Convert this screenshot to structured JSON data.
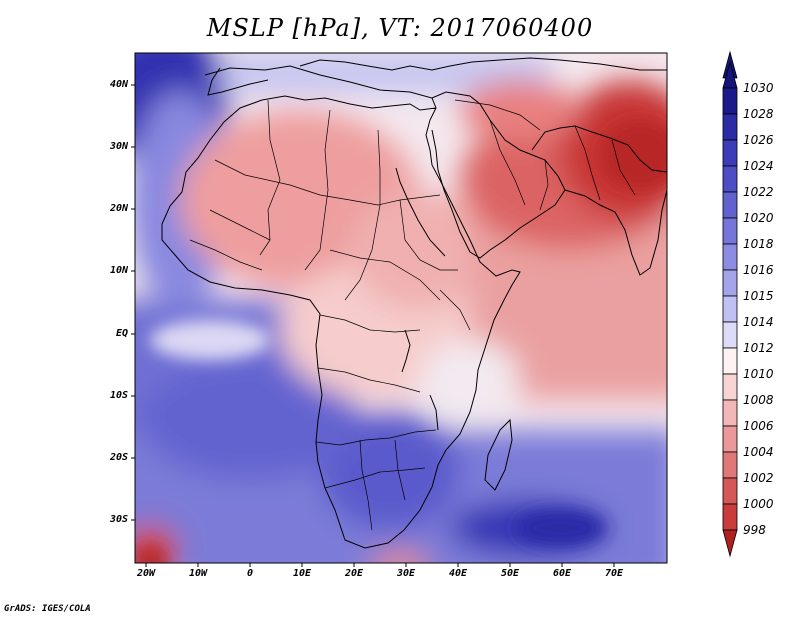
{
  "title": "MSLP [hPa], VT: 2017060400",
  "credit": "GrADS: IGES/COLA",
  "map": {
    "lat_labels": [
      "40N",
      "30N",
      "20N",
      "10N",
      "EQ",
      "10S",
      "20S",
      "30S"
    ],
    "lon_labels": [
      "20W",
      "10W",
      "0",
      "10E",
      "20E",
      "30E",
      "40E",
      "50E",
      "60E",
      "70E"
    ]
  },
  "colorbar": {
    "levels": [
      "1030",
      "1028",
      "1026",
      "1024",
      "1022",
      "1020",
      "1018",
      "1016",
      "1015",
      "1014",
      "1012",
      "1010",
      "1008",
      "1006",
      "1004",
      "1002",
      "1000",
      "998"
    ],
    "colors": [
      "#1a1a8c",
      "#2b2ba6",
      "#3c3cb8",
      "#4d4dc6",
      "#6161d0",
      "#7676da",
      "#8c8ce2",
      "#a4a4ea",
      "#c0c0f2",
      "#dcdcf8",
      "#fff2f2",
      "#f8d4d4",
      "#f2b8b8",
      "#ea9898",
      "#e07878",
      "#d45858",
      "#c83c3c",
      "#b02020"
    ]
  }
}
